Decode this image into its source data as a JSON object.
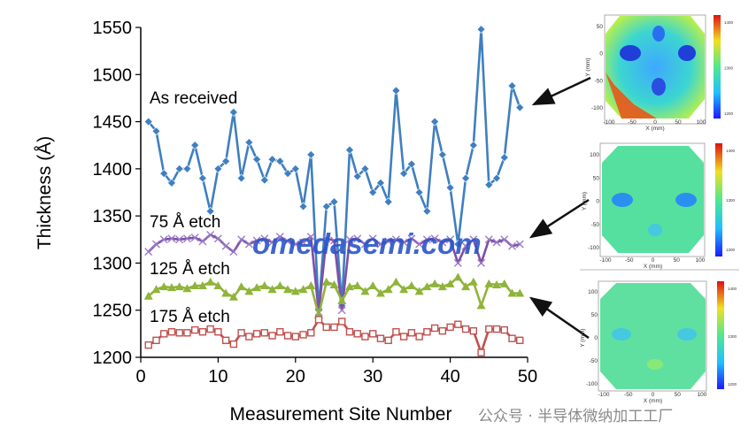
{
  "chart_data": {
    "type": "line",
    "title": "",
    "xlabel": "Measurement Site Number",
    "ylabel": "Thickness (Å)",
    "xlim": [
      0,
      50
    ],
    "ylim": [
      1200,
      1550
    ],
    "xticks": [
      0,
      10,
      20,
      30,
      40,
      50
    ],
    "yticks": [
      1200,
      1250,
      1300,
      1350,
      1400,
      1450,
      1500,
      1550
    ],
    "x": [
      1,
      2,
      3,
      4,
      5,
      6,
      7,
      8,
      9,
      10,
      11,
      12,
      13,
      14,
      15,
      16,
      17,
      18,
      19,
      20,
      21,
      22,
      23,
      24,
      25,
      26,
      27,
      28,
      29,
      30,
      31,
      32,
      33,
      34,
      35,
      36,
      37,
      38,
      39,
      40,
      41,
      42,
      43,
      44,
      45,
      46,
      47,
      48,
      49
    ],
    "series": [
      {
        "name": "As received",
        "color": "#3f7fc0",
        "marker": "diamond",
        "values": [
          1450,
          1440,
          1395,
          1385,
          1400,
          1400,
          1425,
          1390,
          1355,
          1400,
          1408,
          1460,
          1390,
          1428,
          1410,
          1388,
          1410,
          1408,
          1395,
          1400,
          1360,
          1415,
          1250,
          1360,
          1365,
          1255,
          1420,
          1392,
          1400,
          1375,
          1385,
          1365,
          1483,
          1395,
          1405,
          1375,
          1355,
          1450,
          1415,
          1380,
          1320,
          1390,
          1425,
          1548,
          1383,
          1390,
          1412,
          1488,
          1465
        ]
      },
      {
        "name": "75 Å etch",
        "color": "#7d4fa8",
        "marker": "x",
        "values": [
          1312,
          1320,
          1325,
          1326,
          1325,
          1326,
          1327,
          1323,
          1330,
          1326,
          1318,
          1312,
          1325,
          1320,
          1324,
          1326,
          1322,
          1328,
          1323,
          1320,
          1322,
          1328,
          1248,
          1326,
          1324,
          1250,
          1325,
          1326,
          1320,
          1326,
          1320,
          1323,
          1325,
          1322,
          1326,
          1320,
          1325,
          1326,
          1322,
          1325,
          1300,
          1318,
          1325,
          1300,
          1325,
          1322,
          1325,
          1318,
          1320
        ]
      },
      {
        "name": "125 Å etch",
        "color": "#8fb43a",
        "marker": "triangle",
        "values": [
          1265,
          1272,
          1275,
          1274,
          1275,
          1273,
          1276,
          1276,
          1280,
          1276,
          1268,
          1264,
          1275,
          1270,
          1274,
          1276,
          1272,
          1276,
          1272,
          1270,
          1272,
          1276,
          1245,
          1280,
          1277,
          1260,
          1275,
          1276,
          1270,
          1276,
          1268,
          1272,
          1280,
          1272,
          1276,
          1270,
          1275,
          1278,
          1275,
          1278,
          1285,
          1275,
          1280,
          1255,
          1278,
          1277,
          1278,
          1268,
          1268
        ]
      },
      {
        "name": "175 Å etch",
        "color": "#c0504d",
        "marker": "square",
        "values": [
          1213,
          1218,
          1225,
          1227,
          1226,
          1226,
          1229,
          1227,
          1230,
          1227,
          1218,
          1214,
          1226,
          1222,
          1225,
          1226,
          1223,
          1227,
          1223,
          1222,
          1224,
          1226,
          1240,
          1232,
          1232,
          1238,
          1227,
          1225,
          1222,
          1225,
          1220,
          1218,
          1227,
          1222,
          1226,
          1222,
          1227,
          1231,
          1228,
          1232,
          1235,
          1230,
          1228,
          1205,
          1230,
          1230,
          1229,
          1220,
          1218
        ]
      }
    ],
    "annotations": {
      "series_labels": [
        "As received",
        "75 Å etch",
        "125 Å etch",
        "175 Å etch"
      ],
      "watermark": "omedasemi.com",
      "footer_watermark": "公众号 · 半导体微纳加工工厂"
    },
    "maps": [
      {
        "name": "as-received-map",
        "xlabel": "X (mm)",
        "ylabel": "Y (mm)",
        "xticks": [
          "-100",
          "-50",
          "0",
          "50",
          "100"
        ],
        "yticks": [
          "50",
          "0",
          "-50",
          "-100"
        ],
        "cbar_ticks": [
          "1400",
          "1300",
          "1200"
        ]
      },
      {
        "name": "75A-etch-map",
        "xlabel": "X (mm)",
        "ylabel": "Y (mm)",
        "xticks": [
          "-100",
          "-50",
          "0",
          "50",
          "100"
        ],
        "yticks": [
          "100",
          "50",
          "0",
          "-50",
          "-100"
        ],
        "cbar_ticks": [
          "1400",
          "1300",
          "1200"
        ]
      },
      {
        "name": "125A-etch-map",
        "xlabel": "X (mm)",
        "ylabel": "Y (mm)",
        "xticks": [
          "-100",
          "-50",
          "0",
          "50",
          "100"
        ],
        "yticks": [
          "100",
          "50",
          "0",
          "-50",
          "-100"
        ],
        "cbar_ticks": [
          "1400",
          "1300",
          "1200"
        ]
      }
    ]
  },
  "colors": {
    "axis": "#000000",
    "arrow": "#111111",
    "watermark": "#2a55c8",
    "map_base": "#55e0a0",
    "map_low": "#1e5fe0",
    "map_high": "#e23a1a"
  }
}
